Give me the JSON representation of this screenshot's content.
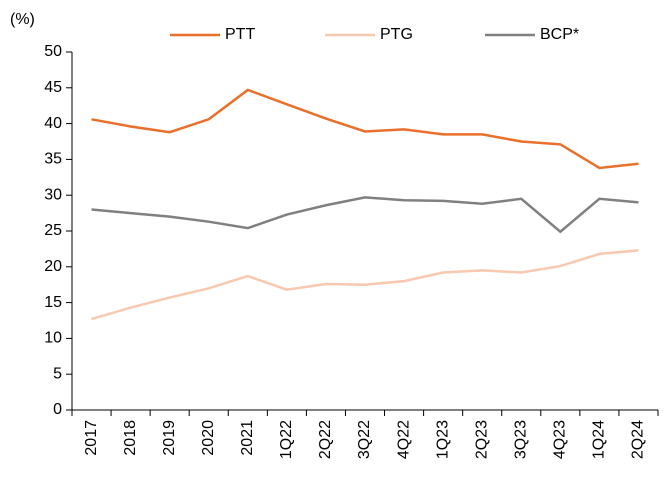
{
  "chart_data": {
    "type": "line",
    "y_label": "(%)",
    "categories": [
      "2017",
      "2018",
      "2019",
      "2020",
      "2021",
      "1Q22",
      "2Q22",
      "3Q22",
      "4Q22",
      "1Q23",
      "2Q23",
      "3Q23",
      "4Q23",
      "1Q24",
      "2Q24"
    ],
    "series": [
      {
        "name": "PTT",
        "color": "#e8702a",
        "values": [
          40.6,
          39.6,
          38.8,
          40.6,
          44.7,
          42.7,
          40.7,
          38.9,
          39.2,
          38.5,
          38.5,
          37.5,
          37.1,
          33.8,
          34.4
        ]
      },
      {
        "name": "PTG",
        "color": "#f8c8b0",
        "values": [
          12.7,
          14.3,
          15.7,
          17.0,
          18.7,
          16.8,
          17.6,
          17.5,
          18.0,
          19.2,
          19.5,
          19.2,
          20.1,
          21.8,
          22.3
        ]
      },
      {
        "name": "BCP*",
        "color": "#808080",
        "values": [
          28.0,
          27.5,
          27.0,
          26.3,
          25.4,
          27.3,
          28.6,
          29.7,
          29.3,
          29.2,
          28.8,
          29.5,
          24.9,
          29.5,
          29.0
        ]
      }
    ],
    "ylim": [
      0,
      50
    ],
    "yticks": [
      0,
      5,
      10,
      15,
      20,
      25,
      30,
      35,
      40,
      45,
      50
    ],
    "legend": "top"
  }
}
